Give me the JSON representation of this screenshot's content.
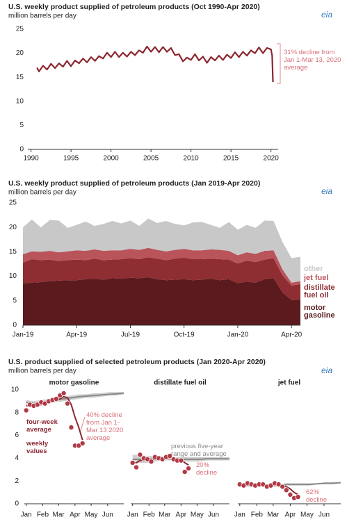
{
  "chart_data": [
    {
      "type": "line",
      "title": "U.S. weekly product supplied of petroleum products (Oct 1990-Apr 2020)",
      "subtitle": "million barrels per day",
      "logo": "eia",
      "color": "#8b2630",
      "x": [
        1990.75,
        1991,
        1991.5,
        1992,
        1992.5,
        1993,
        1993.5,
        1994,
        1994.5,
        1995,
        1995.5,
        1996,
        1996.5,
        1997,
        1997.5,
        1998,
        1998.5,
        1999,
        1999.5,
        2000,
        2000.5,
        2001,
        2001.5,
        2002,
        2002.5,
        2003,
        2003.5,
        2004,
        2004.5,
        2005,
        2005.5,
        2006,
        2006.5,
        2007,
        2007.5,
        2008,
        2008.5,
        2009,
        2009.5,
        2010,
        2010.5,
        2011,
        2011.5,
        2012,
        2012.5,
        2013,
        2013.5,
        2014,
        2014.5,
        2015,
        2015.5,
        2016,
        2016.5,
        2017,
        2017.5,
        2018,
        2018.5,
        2019,
        2019.5,
        2020,
        2020.15,
        2020.25
      ],
      "values": [
        17.0,
        16.2,
        17.4,
        16.6,
        17.8,
        16.9,
        17.9,
        17.2,
        18.4,
        17.3,
        18.5,
        17.9,
        18.9,
        18.1,
        19.2,
        18.4,
        19.4,
        18.9,
        20.1,
        19.2,
        20.3,
        19.2,
        20.1,
        19.3,
        20.3,
        19.6,
        20.6,
        20.1,
        21.4,
        20.3,
        21.3,
        20.2,
        21.3,
        20.3,
        21.1,
        19.6,
        19.8,
        18.3,
        19.1,
        18.6,
        19.8,
        18.5,
        19.3,
        18.0,
        19.2,
        18.5,
        19.5,
        18.6,
        19.7,
        19.0,
        20.2,
        19.2,
        20.3,
        19.5,
        20.6,
        20.0,
        21.2,
        20.0,
        21.1,
        20.8,
        19.5,
        14.0
      ],
      "xlim": [
        1989.6,
        2020.9
      ],
      "xticks": [
        1990,
        1995,
        2000,
        2005,
        2010,
        2015,
        2020
      ],
      "ylim": [
        0,
        25
      ],
      "yticks": [
        0,
        5,
        10,
        15,
        20,
        25
      ],
      "annotation": "31% decline from Jan 1-Mar 13, 2020 average"
    },
    {
      "type": "stacked-area",
      "title": "U.S. weekly product supplied of petroleum products (Jan 2019-Apr 2020)",
      "subtitle": "million barrels per day",
      "logo": "eia",
      "categories": [
        "Jan-19",
        null,
        null,
        null,
        null,
        null,
        "Apr-19",
        null,
        null,
        null,
        null,
        null,
        "Jul-19",
        null,
        null,
        null,
        null,
        null,
        "Oct-19",
        null,
        null,
        null,
        null,
        null,
        "Jan-20",
        null,
        null,
        null,
        null,
        null,
        "Apr-20",
        null
      ],
      "series": [
        {
          "name": "motor gasoline",
          "color": "#5a1a1e",
          "values": [
            8.5,
            8.7,
            8.8,
            9.0,
            9.1,
            9.2,
            9.2,
            9.4,
            9.5,
            9.3,
            9.6,
            9.5,
            9.7,
            9.6,
            9.8,
            9.4,
            9.2,
            9.3,
            9.4,
            9.2,
            9.3,
            9.5,
            9.2,
            9.4,
            8.6,
            8.9,
            8.7,
            9.4,
            9.6,
            6.7,
            5.1,
            5.3
          ]
        },
        {
          "name": "distillate fuel oil",
          "color": "#8e2d32",
          "values": [
            4.3,
            4.8,
            4.5,
            4.4,
            4.0,
            4.1,
            4.2,
            3.9,
            4.1,
            4.0,
            3.8,
            4.0,
            4.0,
            3.9,
            4.1,
            4.2,
            4.1,
            4.3,
            4.4,
            4.3,
            4.2,
            4.1,
            4.3,
            4.0,
            4.0,
            4.3,
            4.2,
            4.0,
            4.1,
            3.5,
            3.0,
            3.1
          ]
        },
        {
          "name": "jet fuel",
          "color": "#b9545b",
          "values": [
            1.7,
            1.6,
            1.7,
            1.8,
            1.8,
            1.8,
            1.9,
            1.9,
            1.9,
            1.9,
            1.9,
            1.8,
            1.9,
            1.9,
            1.9,
            1.8,
            1.8,
            1.8,
            1.8,
            1.8,
            1.8,
            1.9,
            1.9,
            1.8,
            1.7,
            1.7,
            1.7,
            1.8,
            1.6,
            1.2,
            0.6,
            0.6
          ]
        },
        {
          "name": "other",
          "color": "#c8c8c8",
          "values": [
            5.5,
            6.5,
            5.0,
            6.3,
            6.5,
            4.8,
            5.2,
            6.0,
            4.8,
            5.5,
            6.0,
            5.5,
            5.8,
            4.9,
            6.0,
            5.5,
            6.2,
            5.3,
            4.8,
            5.7,
            5.8,
            5.0,
            4.5,
            5.9,
            5.2,
            5.6,
            5.3,
            6.2,
            6.0,
            5.6,
            5.0,
            5.0
          ]
        }
      ],
      "ylim": [
        0,
        25
      ],
      "yticks": [
        0,
        5,
        10,
        15,
        20,
        25
      ]
    },
    {
      "type": "small-multiples",
      "title": "U.S. product supplied of selected petroleum products (Jan 2020-Apr 2020)",
      "subtitle": "million barrels per day",
      "logo": "eia",
      "ylim": [
        0,
        10
      ],
      "yticks": [
        0,
        2,
        4,
        6,
        8,
        10
      ],
      "xlim": [
        -0.5,
        26
      ],
      "xticks": [
        {
          "value": 0,
          "label": "Jan"
        },
        {
          "value": 4.4,
          "label": "Feb"
        },
        {
          "value": 8.6,
          "label": "Mar"
        },
        {
          "value": 13,
          "label": "Apr"
        },
        {
          "value": 17.3,
          "label": "May"
        },
        {
          "value": 21.7,
          "label": "Jun"
        }
      ],
      "dot_color": "#b03a45",
      "average_color": "#8b2630",
      "range_color": "#cfcfcf",
      "five_year_color": "#8a8a8a",
      "panels": [
        {
          "title": "motor gasoline",
          "x": [
            0,
            1,
            2,
            3,
            4,
            5,
            6,
            7,
            8,
            9,
            10,
            11,
            12,
            13,
            14,
            15
          ],
          "weekly": [
            8.2,
            8.7,
            8.6,
            8.7,
            8.9,
            8.8,
            9.0,
            9.1,
            9.2,
            9.5,
            9.7,
            8.8,
            6.7,
            5.1,
            5.1,
            5.3
          ],
          "average": [
            8.6,
            8.6,
            8.6,
            8.7,
            8.7,
            8.8,
            8.9,
            9.0,
            9.1,
            9.2,
            9.4,
            9.3,
            8.7,
            7.6,
            6.7,
            5.6
          ],
          "x_five_year": [
            0,
            2,
            4,
            6,
            8,
            10,
            12,
            14,
            16,
            18,
            20,
            22,
            24,
            26
          ],
          "range_low": [
            8.6,
            8.6,
            8.7,
            8.8,
            8.9,
            9.0,
            9.1,
            9.2,
            9.3,
            9.3,
            9.4,
            9.5,
            9.5,
            9.6
          ],
          "range_high": [
            9.1,
            9.0,
            9.1,
            9.2,
            9.3,
            9.4,
            9.5,
            9.6,
            9.6,
            9.7,
            9.7,
            9.8,
            9.8,
            9.8
          ],
          "five_year_average": [
            8.9,
            8.8,
            8.9,
            9.0,
            9.1,
            9.2,
            9.3,
            9.4,
            9.45,
            9.5,
            9.55,
            9.6,
            9.65,
            9.7
          ],
          "annotations": [
            "four-week average",
            "weekly values",
            "40% decline from Jan 1-Mar 13 2020 average"
          ]
        },
        {
          "title": "distillate fuel oil",
          "x": [
            0,
            1,
            2,
            3,
            4,
            5,
            6,
            7,
            8,
            9,
            10,
            11,
            12,
            13,
            14,
            15
          ],
          "weekly": [
            3.6,
            3.2,
            4.3,
            4.0,
            3.9,
            3.7,
            4.1,
            4.0,
            3.9,
            4.1,
            4.2,
            3.9,
            3.8,
            3.8,
            2.8,
            3.1
          ],
          "average": [
            3.6,
            3.6,
            3.8,
            3.8,
            3.9,
            3.9,
            3.9,
            3.9,
            3.9,
            4.0,
            4.1,
            4.0,
            3.9,
            3.9,
            3.6,
            3.4
          ],
          "x_five_year": [
            0,
            2,
            4,
            6,
            8,
            10,
            12,
            14,
            16,
            18,
            20,
            22,
            24,
            26
          ],
          "range_low": [
            3.5,
            3.6,
            3.6,
            3.7,
            3.8,
            3.8,
            3.7,
            3.7,
            3.7,
            3.7,
            3.8,
            3.8,
            3.8,
            3.8
          ],
          "range_high": [
            4.3,
            4.3,
            4.2,
            4.2,
            4.2,
            4.1,
            4.1,
            4.1,
            4.1,
            4.1,
            4.1,
            4.1,
            4.1,
            4.1
          ],
          "five_year_average": [
            3.9,
            3.9,
            3.9,
            3.95,
            4.0,
            3.95,
            3.9,
            3.9,
            3.9,
            3.9,
            3.95,
            3.95,
            3.95,
            3.95
          ],
          "annotations": [
            "previous five-year range and average",
            "20% decline"
          ]
        },
        {
          "title": "jet fuel",
          "x": [
            0,
            1,
            2,
            3,
            4,
            5,
            6,
            7,
            8,
            9,
            10,
            11,
            12,
            13,
            14,
            15
          ],
          "weekly": [
            1.7,
            1.6,
            1.8,
            1.7,
            1.6,
            1.7,
            1.7,
            1.5,
            1.6,
            1.8,
            1.7,
            1.5,
            1.2,
            0.8,
            0.5,
            0.6
          ],
          "average": [
            1.7,
            1.7,
            1.7,
            1.7,
            1.7,
            1.7,
            1.7,
            1.6,
            1.6,
            1.7,
            1.7,
            1.6,
            1.5,
            1.3,
            1.0,
            0.8
          ],
          "x_five_year": [
            0,
            2,
            4,
            6,
            8,
            10,
            12,
            14,
            16,
            18,
            20,
            22,
            24,
            26
          ],
          "range_low": [
            1.5,
            1.5,
            1.5,
            1.5,
            1.5,
            1.5,
            1.6,
            1.6,
            1.6,
            1.6,
            1.7,
            1.7,
            1.7,
            1.8
          ],
          "range_high": [
            1.7,
            1.7,
            1.7,
            1.7,
            1.7,
            1.7,
            1.8,
            1.8,
            1.8,
            1.8,
            1.8,
            1.9,
            1.9,
            1.9
          ],
          "five_year_average": [
            1.6,
            1.6,
            1.6,
            1.6,
            1.6,
            1.6,
            1.7,
            1.7,
            1.7,
            1.7,
            1.75,
            1.8,
            1.8,
            1.85
          ],
          "annotations": [
            "62% decline"
          ]
        }
      ]
    }
  ]
}
